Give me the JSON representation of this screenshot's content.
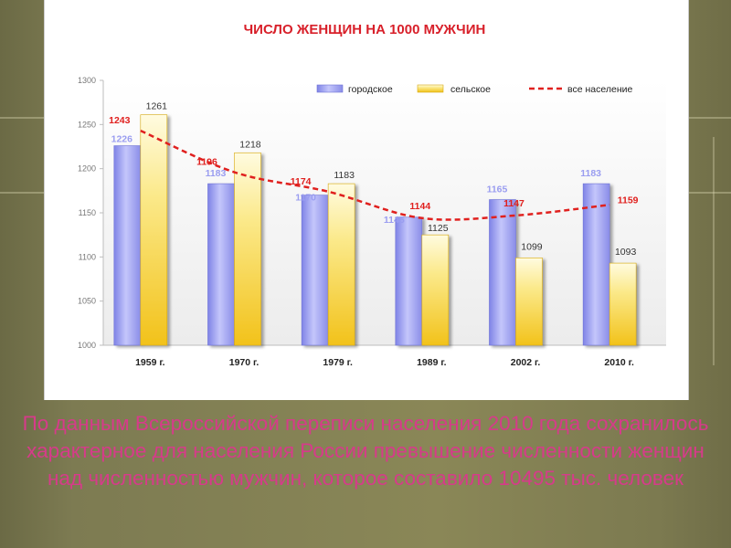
{
  "chart_data": {
    "type": "bar",
    "title": "ЧИСЛО ЖЕНЩИН НА 1000 МУЖЧИН",
    "categories": [
      "1959 г.",
      "1970 г.",
      "1979 г.",
      "1989 г.",
      "2002 г.",
      "2010 г."
    ],
    "series": [
      {
        "name": "городское",
        "kind": "bar",
        "values": [
          1226,
          1183,
          1170,
          1145,
          1165,
          1183
        ]
      },
      {
        "name": "сельское",
        "kind": "bar",
        "values": [
          1261,
          1218,
          1183,
          1125,
          1099,
          1093
        ]
      },
      {
        "name": "все население",
        "kind": "line",
        "values": [
          1243,
          1196,
          1174,
          1144,
          1147,
          1159
        ]
      }
    ],
    "yticks": [
      "1000",
      "1050",
      "1100",
      "1150",
      "1200",
      "1250",
      "1300"
    ],
    "ylim": [
      1000,
      1300
    ],
    "legend_position": "top-right",
    "grid": false
  },
  "colors": {
    "urban": "#9c9ff0",
    "rural": "#f5d85a",
    "total_line": "#e0201e",
    "title": "#d8202a",
    "caption": "#d63b8a"
  },
  "caption": "По данным Всероссийской переписи населения 2010 года сохранилось характерное для населения России превышение численности женщин над численностью мужчин, которое составило 10495 тыс. человек"
}
